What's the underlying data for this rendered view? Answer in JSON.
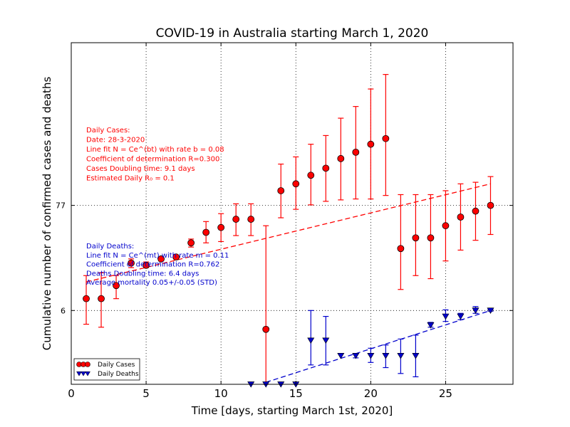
{
  "chart_data": {
    "type": "scatter",
    "title": "COVID-19 in Australia starting March 1, 2020",
    "xlabel": "Time [days, starting March 1st, 2020]",
    "ylabel": "Cumulative number of confirmed cases and deaths",
    "yscale": "log",
    "xlim": [
      0,
      29.5
    ],
    "ylim": [
      1.0,
      4000
    ],
    "grid": "dotted",
    "x_ticks": [
      {
        "value": 0,
        "label": "0"
      },
      {
        "value": 5,
        "label": "5"
      },
      {
        "value": 10,
        "label": "10"
      },
      {
        "value": 15,
        "label": "15"
      },
      {
        "value": 20,
        "label": "20"
      },
      {
        "value": 25,
        "label": "25"
      }
    ],
    "y_ticks": [
      {
        "value": 6,
        "label": "6"
      },
      {
        "value": 77,
        "label": "77"
      }
    ],
    "legend": {
      "placement": "lower-left",
      "entries": [
        "Daily Cases",
        "Daily Deaths"
      ]
    },
    "series": [
      {
        "name": "Daily Cases",
        "color": "#ff0000",
        "marker": "circle",
        "points": [
          {
            "x": 1,
            "y": 8,
            "lo": 4.3,
            "hi": 14
          },
          {
            "x": 2,
            "y": 8,
            "lo": 4.0,
            "hi": 15
          },
          {
            "x": 3,
            "y": 11,
            "lo": 8,
            "hi": 14
          },
          {
            "x": 4,
            "y": 19,
            "lo": 17,
            "hi": 21
          },
          {
            "x": 5,
            "y": 18,
            "lo": 17,
            "hi": 19.5
          },
          {
            "x": 6,
            "y": 21,
            "lo": 20,
            "hi": 22
          },
          {
            "x": 7,
            "y": 22,
            "lo": 21,
            "hi": 23
          },
          {
            "x": 8,
            "y": 31,
            "lo": 28,
            "hi": 34
          },
          {
            "x": 9,
            "y": 40,
            "lo": 31,
            "hi": 52
          },
          {
            "x": 10,
            "y": 45,
            "lo": 32,
            "hi": 63
          },
          {
            "x": 11,
            "y": 55,
            "lo": 37,
            "hi": 80
          },
          {
            "x": 12,
            "y": 55,
            "lo": 37,
            "hi": 80
          },
          {
            "x": 13,
            "y": 3.8,
            "lo": 1.0,
            "hi": 47
          },
          {
            "x": 14,
            "y": 110,
            "lo": 57,
            "hi": 210
          },
          {
            "x": 15,
            "y": 130,
            "lo": 70,
            "hi": 250
          },
          {
            "x": 16,
            "y": 160,
            "lo": 78,
            "hi": 340
          },
          {
            "x": 17,
            "y": 190,
            "lo": 85,
            "hi": 420
          },
          {
            "x": 18,
            "y": 240,
            "lo": 88,
            "hi": 640
          },
          {
            "x": 19,
            "y": 280,
            "lo": 90,
            "hi": 850
          },
          {
            "x": 20,
            "y": 340,
            "lo": 90,
            "hi": 1300
          },
          {
            "x": 21,
            "y": 390,
            "lo": 98,
            "hi": 1850
          },
          {
            "x": 22,
            "y": 27,
            "lo": 10,
            "hi": 100
          },
          {
            "x": 23,
            "y": 35,
            "lo": 14,
            "hi": 100
          },
          {
            "x": 24,
            "y": 35,
            "lo": 13,
            "hi": 100
          },
          {
            "x": 25,
            "y": 47,
            "lo": 20,
            "hi": 110
          },
          {
            "x": 26,
            "y": 58,
            "lo": 26,
            "hi": 130
          },
          {
            "x": 27,
            "y": 67,
            "lo": 33,
            "hi": 135
          },
          {
            "x": 28,
            "y": 77,
            "lo": 38,
            "hi": 155
          }
        ]
      },
      {
        "name": "Daily Deaths",
        "color": "#0000cc",
        "marker": "triangle-down",
        "points": [
          {
            "x": 12,
            "y": 1.0
          },
          {
            "x": 13,
            "y": 1.0
          },
          {
            "x": 14,
            "y": 1.0
          },
          {
            "x": 15,
            "y": 1.0
          },
          {
            "x": 16,
            "y": 2.9,
            "lo": 1.6,
            "hi": 6.0
          },
          {
            "x": 17,
            "y": 2.9,
            "lo": 1.6,
            "hi": 5.2
          },
          {
            "x": 18,
            "y": 2.0
          },
          {
            "x": 19,
            "y": 2.0,
            "lo": 1.9,
            "hi": 2.1
          },
          {
            "x": 20,
            "y": 2.0,
            "lo": 1.7,
            "hi": 2.4
          },
          {
            "x": 21,
            "y": 2.0,
            "lo": 1.5,
            "hi": 2.6
          },
          {
            "x": 22,
            "y": 2.0,
            "lo": 1.3,
            "hi": 3.0
          },
          {
            "x": 23,
            "y": 2.0,
            "lo": 1.2,
            "hi": 3.3
          },
          {
            "x": 24,
            "y": 4.2,
            "lo": 4.0,
            "hi": 4.5
          },
          {
            "x": 25,
            "y": 5.2,
            "lo": 4.6,
            "hi": 6.1
          },
          {
            "x": 26,
            "y": 5.2,
            "lo": 4.8,
            "hi": 5.6
          },
          {
            "x": 27,
            "y": 6.0,
            "lo": 5.6,
            "hi": 6.6
          },
          {
            "x": 28,
            "y": 6.0,
            "lo": 5.9,
            "hi": 6.1
          }
        ]
      }
    ],
    "fit_lines": [
      {
        "series": "Daily Cases",
        "color": "#ff0000",
        "style": "dashed",
        "x": [
          1,
          28
        ],
        "y": [
          12,
          130
        ]
      },
      {
        "series": "Daily Deaths",
        "color": "#0000cc",
        "style": "dashed",
        "x": [
          13,
          28
        ],
        "y": [
          1.05,
          6.0
        ]
      }
    ],
    "annotations": {
      "cases": {
        "color": "#ff0000",
        "lines": [
          "Daily Cases:",
          "Date: 28-3-2020",
          "Line fit N = Ce^(bt) with rate b = 0.08",
          "Coefficient of determination R=0.300",
          "Cases Doubling time: 9.1 days",
          "Estimated Daily R₀ = 0.1"
        ]
      },
      "deaths": {
        "color": "#0000cc",
        "lines": [
          "Daily Deaths:",
          "Line fit N = Ce^(mt) with rate m = 0.11",
          "Coefficient of determination R=0.762",
          "Deaths Doubling time: 6.4 days",
          "Average mortality 0.05+/-0.05 (STD)"
        ]
      }
    }
  }
}
